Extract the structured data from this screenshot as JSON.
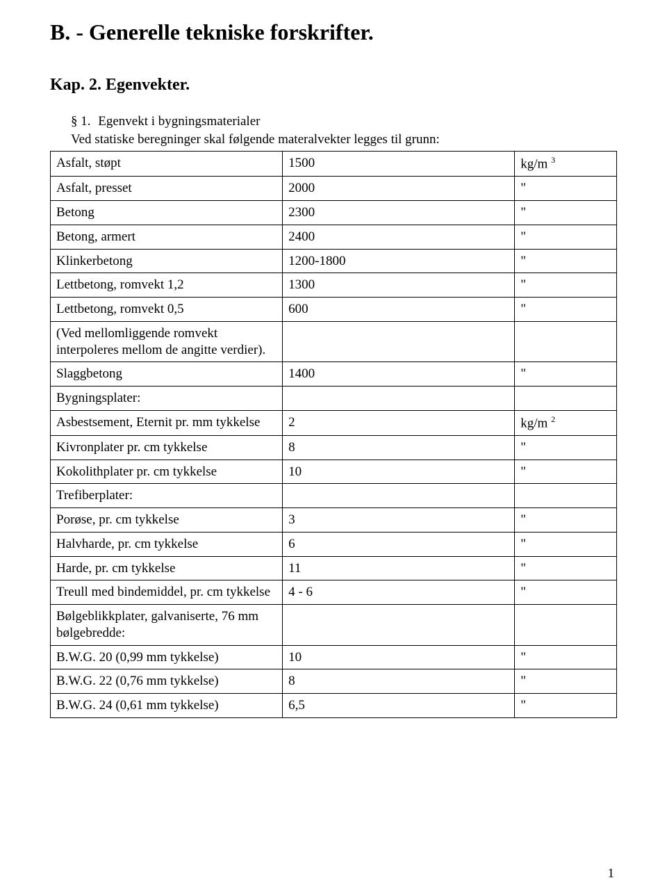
{
  "header": {
    "main_title": "B. - Generelle tekniske forskrifter.",
    "sub_title": "Kap. 2. Egenvekter."
  },
  "paragraph": {
    "section_mark": "§ 1.",
    "lead": "Egenvekt i bygningsmaterialer",
    "body": "Ved statiske beregninger skal følgende materalvekter legges til grunn:"
  },
  "table": {
    "columns": [
      "label",
      "value",
      "unit"
    ],
    "col_widths_pct": [
      41,
      41,
      18
    ],
    "border_color": "#000000",
    "font_size": 19,
    "rows": [
      {
        "label": "Asfalt, støpt",
        "value": "1500",
        "unit_html": "kg/m <sup>3</sup>"
      },
      {
        "label": "Asfalt, presset",
        "value": "2000",
        "unit": "\""
      },
      {
        "label": "Betong",
        "value": "2300",
        "unit": "\""
      },
      {
        "label": "Betong, armert",
        "value": "2400",
        "unit": "\""
      },
      {
        "label": "Klinkerbetong",
        "value": "1200-1800",
        "unit": "\""
      },
      {
        "label": "Lettbetong, romvekt 1,2",
        "value": "1300",
        "unit": "\""
      },
      {
        "label": "Lettbetong, romvekt 0,5",
        "value": "600",
        "unit": "\""
      },
      {
        "label": "(Ved mellomliggende romvekt interpoleres mellom de angitte verdier).",
        "value": "",
        "unit": ""
      },
      {
        "label": "Slaggbetong",
        "value": "1400",
        "unit": "\""
      },
      {
        "label": "Bygningsplater:",
        "value": "",
        "unit": ""
      },
      {
        "label": "Asbestsement, Eternit pr. mm tykkelse",
        "value": "2",
        "unit_html": "kg/m <sup>2</sup>"
      },
      {
        "label": "Kivronplater pr. cm tykkelse",
        "value": "8",
        "unit": "\""
      },
      {
        "label": "Kokolithplater pr. cm tykkelse",
        "value": "10",
        "unit": "\""
      },
      {
        "label": "Trefiberplater:",
        "value": "",
        "unit": ""
      },
      {
        "label": "Porøse, pr. cm tykkelse",
        "value": "3",
        "unit": "\""
      },
      {
        "label": "Halvharde, pr. cm tykkelse",
        "value": "6",
        "unit": "\""
      },
      {
        "label": "Harde, pr. cm tykkelse",
        "value": "11",
        "unit": "\""
      },
      {
        "label": "Treull med bindemiddel, pr. cm tykkelse",
        "value": "4 - 6",
        "unit": "\""
      },
      {
        "label": "Bølgeblikkplater, galvaniserte, 76 mm bølgebredde:",
        "value": "",
        "unit": ""
      },
      {
        "label": "B.W.G. 20 (0,99 mm tykkelse)",
        "value": "10",
        "unit": "\""
      },
      {
        "label": "B.W.G. 22 (0,76 mm tykkelse)",
        "value": "8",
        "unit": "\""
      },
      {
        "label": "B.W.G. 24 (0,61 mm tykkelse)",
        "value": "6,5",
        "unit": "\""
      }
    ]
  },
  "page_number": "1",
  "colors": {
    "text": "#000000",
    "background": "#ffffff",
    "border": "#000000"
  }
}
